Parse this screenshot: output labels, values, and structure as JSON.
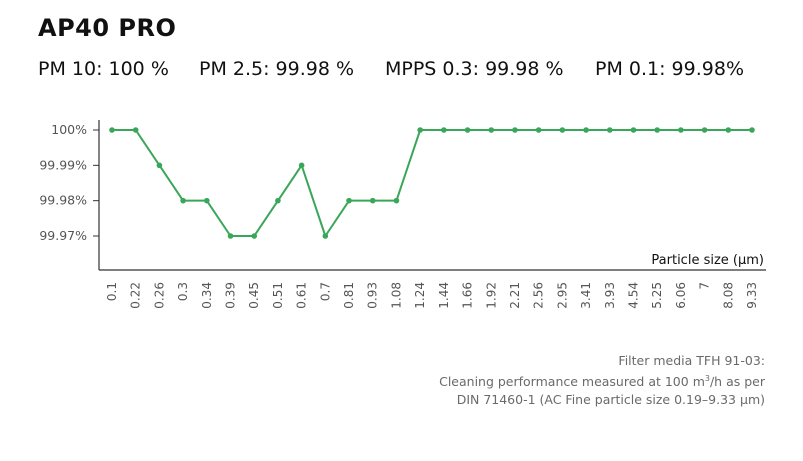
{
  "header": {
    "title": "AP40 PRO",
    "metrics": [
      "PM 10: 100 %",
      "PM 2.5: 99.98 %",
      "MPPS 0.3: 99.98 %",
      "PM 0.1: 99.98%"
    ]
  },
  "chart_data": {
    "type": "line",
    "title": "",
    "xlabel": "Particle size (µm)",
    "ylabel": "",
    "categories": [
      "0.1",
      "0.22",
      "0.26",
      "0.3",
      "0.34",
      "0.39",
      "0.45",
      "0.51",
      "0.61",
      "0.7",
      "0.81",
      "0.93",
      "1.08",
      "1.24",
      "1.44",
      "1.66",
      "1.92",
      "2.21",
      "2.56",
      "2.95",
      "3.41",
      "3.93",
      "4.54",
      "5.25",
      "6.06",
      "7",
      "8.08",
      "9.33"
    ],
    "series": [
      {
        "values": [
          100,
          100,
          99.99,
          99.98,
          99.98,
          99.97,
          99.97,
          99.98,
          99.99,
          99.97,
          99.98,
          99.98,
          99.98,
          100,
          100,
          100,
          100,
          100,
          100,
          100,
          100,
          100,
          100,
          100,
          100,
          100,
          100,
          100
        ]
      }
    ],
    "yticks": [
      {
        "value": 100,
        "label": "100%"
      },
      {
        "value": 99.99,
        "label": "99.99%"
      },
      {
        "value": 99.98,
        "label": "99.98%"
      },
      {
        "value": 99.97,
        "label": "99.97%"
      }
    ],
    "ylim": [
      99.96,
      100
    ],
    "grid": false,
    "legend": "none",
    "line_color": "#3aa65a",
    "axis_color": "#333333",
    "label_color": "#555555"
  },
  "footnote": {
    "line1": "Filter media TFH 91-03:",
    "line2_before": "Cleaning performance measured at 100 m",
    "line2_sup": "3",
    "line2_after": "/h as per",
    "line3": "DIN 71460-1 (AC Fine particle size 0.19–9.33 µm)"
  }
}
